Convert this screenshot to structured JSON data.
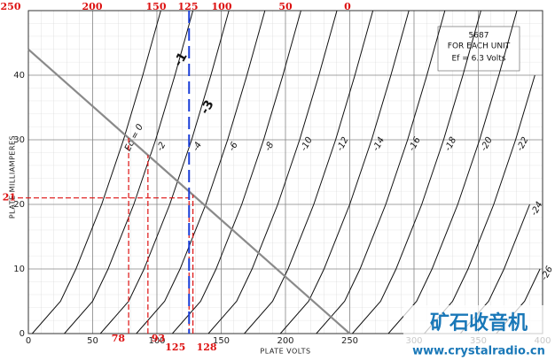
{
  "chart_data": {
    "type": "line",
    "xlabel": "PLATE VOLTS",
    "ylabel": "PLATE MILLIAMPERES",
    "xlim": [
      0,
      400
    ],
    "ylim": [
      0,
      50
    ],
    "xticks": [
      0,
      50,
      100,
      150,
      200,
      250,
      300,
      350,
      400
    ],
    "yticks": [
      0,
      10,
      20,
      30,
      40
    ],
    "grid": true,
    "series": [
      {
        "name": "Ec = 0",
        "color": "#111",
        "x": [
          3,
          25,
          37,
          57,
          74,
          89,
          103
        ],
        "values": [
          0,
          5,
          10,
          20,
          30,
          40,
          50
        ]
      },
      {
        "name": "-2",
        "color": "#111",
        "x": [
          28,
          50,
          62,
          82,
          99,
          114,
          128
        ],
        "values": [
          0,
          5,
          10,
          20,
          30,
          40,
          50
        ]
      },
      {
        "name": "-4",
        "color": "#111",
        "x": [
          56,
          78,
          90,
          110,
          127,
          142,
          156
        ],
        "values": [
          0,
          5,
          10,
          20,
          30,
          40,
          50
        ]
      },
      {
        "name": "-6",
        "color": "#111",
        "x": [
          84,
          106,
          118,
          138,
          155,
          170,
          184
        ],
        "values": [
          0,
          5,
          10,
          20,
          30,
          40,
          50
        ]
      },
      {
        "name": "-8",
        "color": "#111",
        "x": [
          112,
          134,
          146,
          166,
          183,
          198,
          212
        ],
        "values": [
          0,
          5,
          10,
          20,
          30,
          40,
          50
        ]
      },
      {
        "name": "-10",
        "color": "#111",
        "x": [
          140,
          162,
          174,
          194,
          211,
          226,
          240
        ],
        "values": [
          0,
          5,
          10,
          20,
          30,
          40,
          50
        ]
      },
      {
        "name": "-12",
        "color": "#111",
        "x": [
          168,
          190,
          202,
          222,
          239,
          254,
          268
        ],
        "values": [
          0,
          5,
          10,
          20,
          30,
          40,
          50
        ]
      },
      {
        "name": "-14",
        "color": "#111",
        "x": [
          196,
          218,
          230,
          250,
          267,
          282,
          296
        ],
        "values": [
          0,
          5,
          10,
          20,
          30,
          40,
          50
        ]
      },
      {
        "name": "-16",
        "color": "#111",
        "x": [
          224,
          246,
          258,
          278,
          295,
          310,
          324
        ],
        "values": [
          0,
          5,
          10,
          20,
          30,
          40,
          50
        ]
      },
      {
        "name": "-18",
        "color": "#111",
        "x": [
          252,
          274,
          286,
          306,
          323,
          338,
          352
        ],
        "values": [
          0,
          5,
          10,
          20,
          30,
          40,
          50
        ]
      },
      {
        "name": "-20",
        "color": "#111",
        "x": [
          280,
          302,
          314,
          334,
          351,
          366,
          380
        ],
        "values": [
          0,
          5,
          10,
          20,
          30,
          40,
          50
        ]
      },
      {
        "name": "-22",
        "color": "#111",
        "x": [
          308,
          330,
          342,
          362,
          379,
          394
        ],
        "values": [
          0,
          5,
          10,
          20,
          30,
          40
        ]
      },
      {
        "name": "-24",
        "color": "#111",
        "x": [
          336,
          358,
          370,
          390
        ],
        "values": [
          0,
          5,
          10,
          20
        ]
      },
      {
        "name": "-26",
        "color": "#111",
        "x": [
          364,
          386,
          398
        ],
        "values": [
          0,
          5,
          10
        ]
      },
      {
        "color": "#8a8a8a",
        "x": [
          0,
          250
        ],
        "values": [
          44,
          0
        ]
      }
    ],
    "info_box": [
      "5687",
      "FOR EACH UNIT",
      "Ef = 6.3 Volts"
    ],
    "top_labels": [
      "250",
      "200",
      "150",
      "125",
      "100",
      "50",
      "0"
    ],
    "x_markers": [
      78,
      93,
      125,
      128
    ],
    "y_markers": [
      21
    ],
    "blue_marker": 125,
    "handwritten_labels": [
      "-1",
      "-3"
    ],
    "watermark": [
      "矿石收音机",
      "www.crystalradio.cn"
    ]
  }
}
